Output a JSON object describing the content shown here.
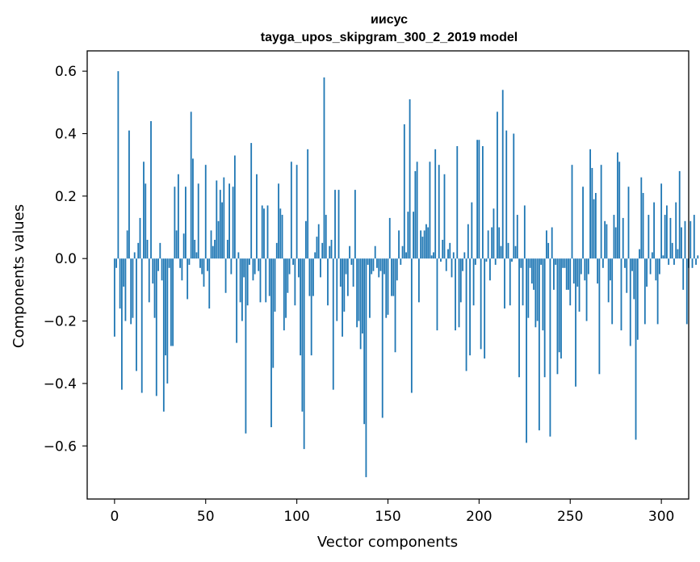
{
  "chart_data": {
    "type": "bar",
    "title_line1": "иисус",
    "title_line2": "tayga_upos_skipgram_300_2_2019 model",
    "xlabel": "Vector components",
    "ylabel": "Components values",
    "xlim": [
      -15,
      315
    ],
    "ylim": [
      -0.77,
      0.665
    ],
    "xticks": [
      0,
      50,
      100,
      150,
      200,
      250,
      300
    ],
    "xtick_labels": [
      "0",
      "50",
      "100",
      "150",
      "200",
      "250",
      "300"
    ],
    "yticks": [
      -0.6,
      -0.4,
      -0.2,
      0.0,
      0.2,
      0.4,
      0.6
    ],
    "ytick_labels": [
      "−0.6",
      "−0.4",
      "−0.2",
      "0.0",
      "0.2",
      "0.4",
      "0.6"
    ],
    "bar_color": "#1f77b4",
    "x_start": 0,
    "values": [
      -0.25,
      -0.03,
      0.6,
      -0.16,
      -0.42,
      -0.09,
      -0.2,
      0.09,
      0.41,
      -0.21,
      -0.19,
      0.02,
      -0.36,
      0.05,
      0.13,
      -0.43,
      0.31,
      0.24,
      0.06,
      -0.14,
      0.44,
      -0.08,
      -0.19,
      -0.44,
      -0.04,
      0.05,
      -0.07,
      -0.49,
      -0.31,
      -0.4,
      -0.03,
      -0.28,
      -0.28,
      0.23,
      0.09,
      0.27,
      -0.03,
      -0.07,
      0.08,
      0.23,
      -0.13,
      -0.02,
      0.47,
      0.32,
      0.06,
      0.02,
      0.24,
      -0.03,
      -0.05,
      -0.09,
      0.3,
      -0.04,
      -0.16,
      0.09,
      0.04,
      0.06,
      0.25,
      0.12,
      0.22,
      0.18,
      0.26,
      -0.11,
      0.06,
      0.24,
      -0.05,
      0.23,
      0.33,
      -0.27,
      0.02,
      -0.14,
      -0.2,
      -0.06,
      -0.56,
      -0.15,
      -0.02,
      0.37,
      -0.07,
      -0.05,
      0.27,
      -0.04,
      -0.14,
      0.17,
      0.16,
      -0.14,
      0.17,
      -0.12,
      -0.54,
      -0.35,
      -0.17,
      0.05,
      0.24,
      0.16,
      0.14,
      -0.23,
      -0.19,
      -0.11,
      -0.05,
      0.31,
      -0.02,
      -0.15,
      0.3,
      -0.06,
      -0.31,
      -0.49,
      -0.61,
      0.12,
      0.35,
      -0.12,
      -0.31,
      -0.12,
      0.02,
      0.07,
      0.11,
      -0.06,
      0.05,
      0.58,
      0.14,
      -0.15,
      0.04,
      0.06,
      -0.42,
      0.22,
      -0.2,
      0.22,
      -0.09,
      -0.25,
      -0.17,
      -0.05,
      -0.12,
      0.04,
      -0.02,
      -0.09,
      0.22,
      -0.22,
      -0.2,
      -0.29,
      -0.24,
      -0.53,
      -0.7,
      -0.02,
      -0.19,
      -0.05,
      -0.04,
      0.04,
      -0.03,
      -0.06,
      -0.04,
      -0.51,
      -0.05,
      -0.19,
      -0.18,
      0.13,
      -0.12,
      -0.12,
      -0.3,
      -0.07,
      0.09,
      -0.02,
      0.04,
      0.43,
      0.02,
      0.15,
      0.51,
      -0.43,
      0.15,
      0.28,
      0.31,
      -0.14,
      0.09,
      0.07,
      0.09,
      0.11,
      0.1,
      0.31,
      0.01,
      0.02,
      0.35,
      -0.23,
      0.3,
      -0.01,
      0.06,
      0.27,
      -0.04,
      0.03,
      0.05,
      -0.06,
      0.02,
      -0.23,
      0.36,
      -0.22,
      -0.14,
      -0.04,
      0.02,
      -0.36,
      0.11,
      -0.31,
      0.18,
      -0.15,
      -0.02,
      0.38,
      0.38,
      -0.29,
      0.36,
      -0.32,
      -0.01,
      0.09,
      -0.07,
      0.1,
      0.16,
      -0.02,
      0.47,
      0.1,
      0.04,
      0.54,
      -0.16,
      0.41,
      0.05,
      -0.15,
      -0.01,
      0.4,
      0.04,
      0.14,
      -0.38,
      -0.03,
      -0.15,
      0.17,
      -0.59,
      -0.19,
      -0.03,
      -0.08,
      -0.1,
      -0.22,
      -0.2,
      -0.55,
      -0.02,
      -0.23,
      -0.38,
      0.09,
      0.05,
      -0.57,
      0.1,
      -0.1,
      -0.02,
      -0.37,
      -0.3,
      -0.32,
      -0.03,
      -0.03,
      -0.1,
      -0.1,
      -0.15,
      0.3,
      -0.08,
      -0.41,
      -0.09,
      -0.17,
      -0.05,
      0.23,
      -0.07,
      -0.2,
      -0.05,
      0.35,
      0.29,
      0.19,
      0.21,
      -0.08,
      -0.37,
      0.3,
      -0.03,
      0.12,
      0.11,
      -0.14,
      -0.07,
      -0.21,
      0.14,
      0.1,
      0.34,
      0.31,
      -0.23,
      0.13,
      -0.03,
      -0.11,
      0.23,
      -0.28,
      -0.04,
      -0.13,
      -0.58,
      -0.26,
      0.03,
      0.26,
      0.21,
      -0.21,
      -0.09,
      0.14,
      -0.05,
      0.02,
      0.18,
      -0.07,
      -0.21,
      -0.05,
      0.24,
      0.01,
      0.14,
      0.17,
      -0.02,
      0.13,
      0.05,
      -0.02,
      0.18,
      0.03,
      0.28,
      0.1,
      -0.1,
      0.12,
      -0.21,
      -0.03,
      0.12,
      -0.03,
      0.14,
      -0.02,
      0.01
    ]
  }
}
